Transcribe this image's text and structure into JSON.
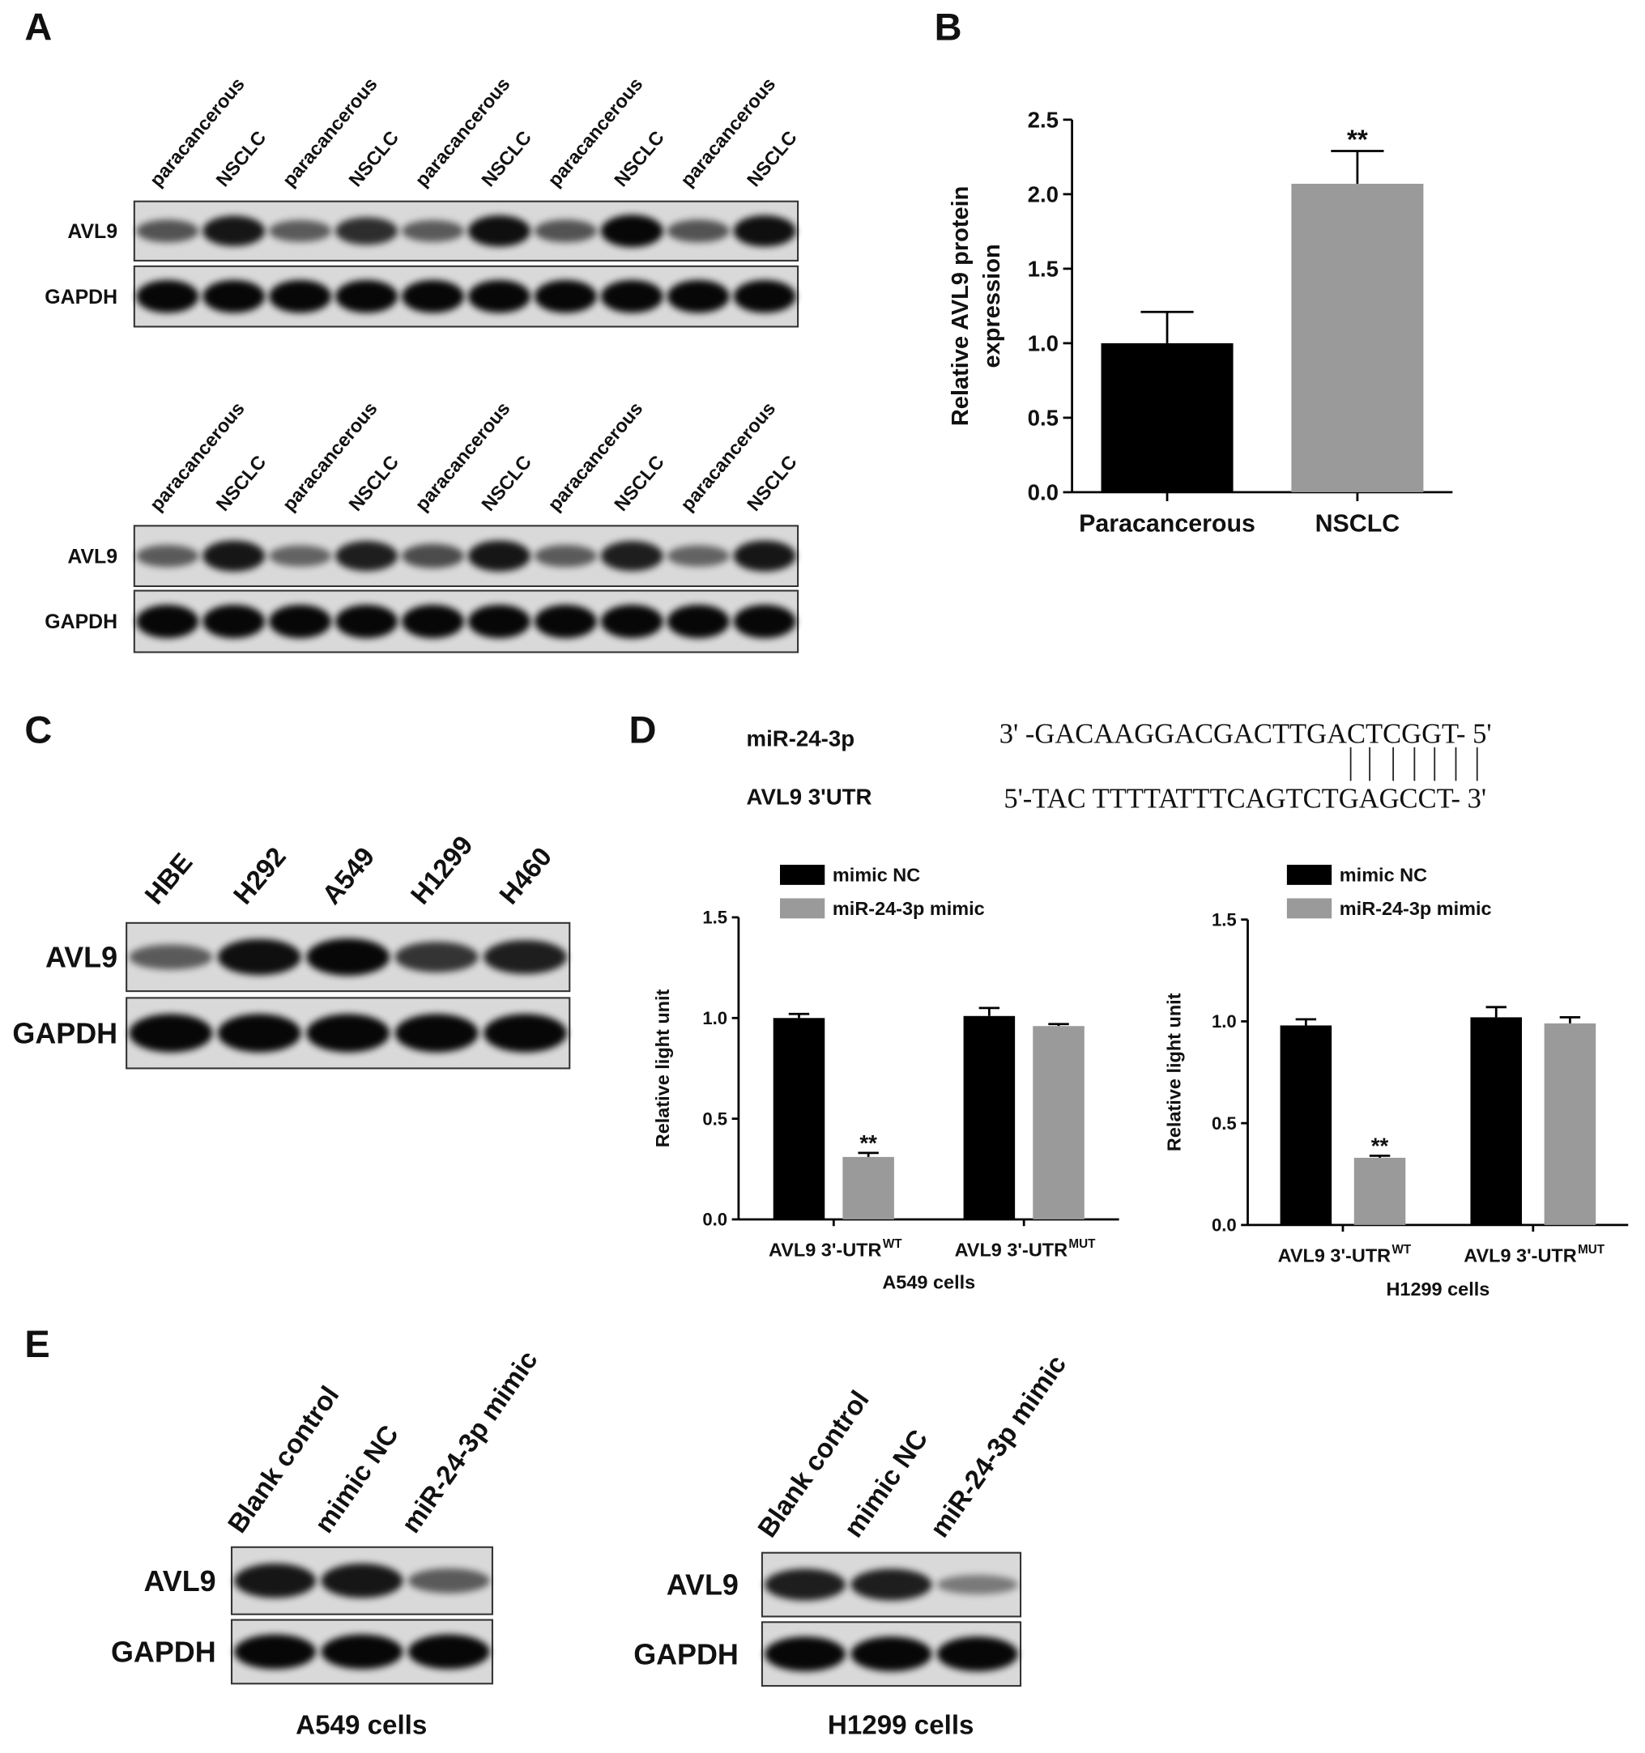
{
  "panel_labels": [
    "A",
    "B",
    "C",
    "D",
    "E"
  ],
  "blots": [
    {
      "lanes": [
        "paracancerous",
        "NSCLC",
        "paracancerous",
        "NSCLC",
        "paracancerous",
        "NSCLC",
        "paracancerous",
        "NSCLC",
        "paracancerous",
        "NSCLC"
      ],
      "rows": [
        "AVL9",
        "GAPDH"
      ]
    },
    {
      "lanes": [
        "paracancerous",
        "NSCLC",
        "paracancerous",
        "NSCLC",
        "paracancerous",
        "NSCLC",
        "paracancerous",
        "NSCLC",
        "paracancerous",
        "NSCLC"
      ],
      "rows": [
        "AVL9",
        "GAPDH"
      ]
    },
    {
      "lanes": [
        "HBE",
        "H292",
        "A549",
        "H1299",
        "H460"
      ],
      "rows": [
        "AVL9",
        "GAPDH"
      ]
    },
    {
      "lanes": [
        "Blank control",
        "mimic NC",
        "miR-24-3p mimic"
      ],
      "rows": [
        "AVL9",
        "GAPDH"
      ],
      "caption": "A549 cells"
    },
    {
      "lanes": [
        "Blank control",
        "mimic NC",
        "miR-24-3p mimic"
      ],
      "rows": [
        "AVL9",
        "GAPDH"
      ],
      "caption": "H1299 cells"
    }
  ],
  "sequence": {
    "rows": [
      {
        "name": "miR-24-3p",
        "seq": "3' -GACAAGGACGACTTGACTCGGT- 5'"
      },
      {
        "name": "AVL9 3'UTR",
        "seq": "5'-TAC TTTTATTTCAGTCTGAGCCT- 3'"
      }
    ]
  },
  "chart_data": [
    {
      "type": "bar",
      "y_label": [
        "Relative AVL9 protein",
        "expression"
      ],
      "categories": [
        "Paracancerous",
        "NSCLC"
      ],
      "series": [
        {
          "values": [
            1.0,
            2.07
          ],
          "errors": [
            0.21,
            0.22
          ],
          "colors": [
            "#000000",
            "#9a9a9a"
          ],
          "annotations": [
            null,
            "**"
          ]
        }
      ],
      "ylim": [
        0,
        2.5
      ],
      "yticks": [
        {
          "value": 0,
          "label": "0.0"
        },
        {
          "value": 0.5,
          "label": "0.5"
        },
        {
          "value": 1,
          "label": "1.0"
        },
        {
          "value": 1.5,
          "label": "1.5"
        },
        {
          "value": 2,
          "label": "2.0"
        },
        {
          "value": 2.5,
          "label": "2.5"
        }
      ]
    },
    {
      "type": "bar",
      "y_label": "Relative light unit",
      "x_label": "A549 cells",
      "categories": [
        "AVL9 3'-UTR",
        "AVL9 3'-UTR"
      ],
      "category_superscripts": [
        "WT",
        "MUT"
      ],
      "series": [
        {
          "name": "mimic NC",
          "color": "#000000",
          "values": [
            1.0,
            1.01
          ],
          "errors": [
            0.02,
            0.04
          ],
          "annotations": [
            null,
            null
          ]
        },
        {
          "name": "miR-24-3p mimic",
          "color": "#9a9a9a",
          "values": [
            0.31,
            0.96
          ],
          "errors": [
            0.02,
            0.01
          ],
          "annotations": [
            "**",
            null
          ]
        }
      ],
      "ylim": [
        0,
        1.5
      ],
      "yticks": [
        {
          "value": 0,
          "label": "0.0"
        },
        {
          "value": 0.5,
          "label": "0.5"
        },
        {
          "value": 1,
          "label": "1.0"
        },
        {
          "value": 1.5,
          "label": "1.5"
        }
      ]
    },
    {
      "type": "bar",
      "y_label": "Relative light unit",
      "x_label": "H1299 cells",
      "categories": [
        "AVL9 3'-UTR",
        "AVL9 3'-UTR"
      ],
      "category_superscripts": [
        "WT",
        "MUT"
      ],
      "series": [
        {
          "name": "mimic NC",
          "color": "#000000",
          "values": [
            0.98,
            1.02
          ],
          "errors": [
            0.03,
            0.05
          ],
          "annotations": [
            null,
            null
          ]
        },
        {
          "name": "miR-24-3p mimic",
          "color": "#9a9a9a",
          "values": [
            0.33,
            0.99
          ],
          "errors": [
            0.01,
            0.03
          ],
          "annotations": [
            "**",
            null
          ]
        }
      ],
      "ylim": [
        0,
        1.5
      ],
      "yticks": [
        {
          "value": 0,
          "label": "0.0"
        },
        {
          "value": 0.5,
          "label": "0.5"
        },
        {
          "value": 1,
          "label": "1.0"
        },
        {
          "value": 1.5,
          "label": "1.5"
        }
      ]
    }
  ]
}
